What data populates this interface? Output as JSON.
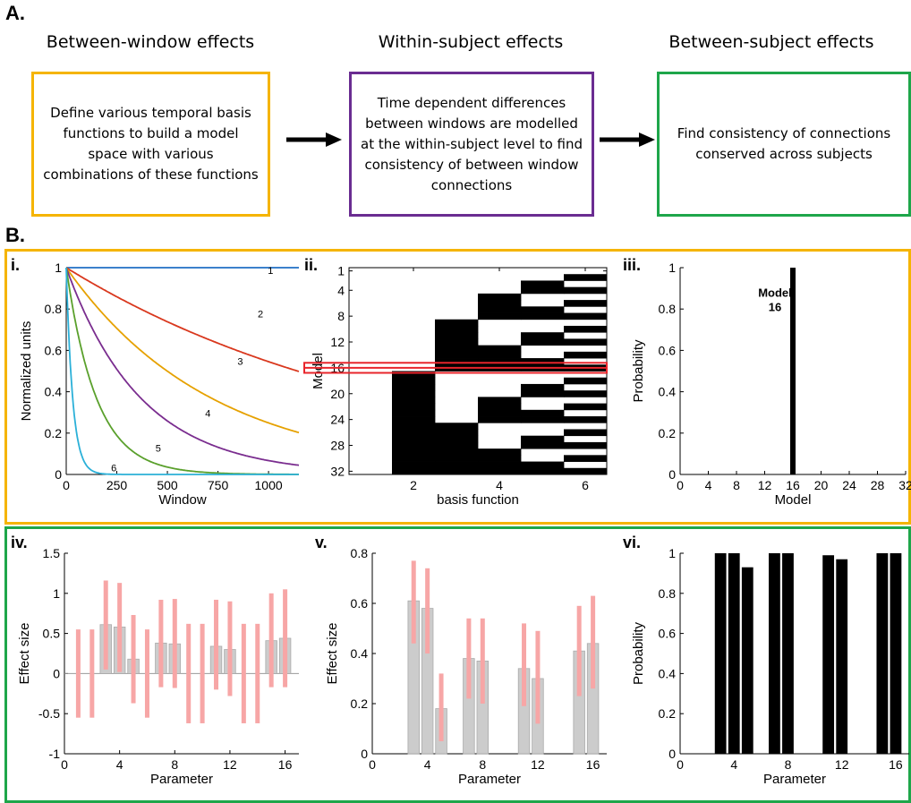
{
  "sectionA": {
    "label": "A.",
    "stages": [
      {
        "title": "Between-window effects",
        "text": "Define various temporal basis functions to build a model space with various combinations of these functions",
        "color": "#f5b400"
      },
      {
        "title": "Within-subject effects",
        "text": "Time dependent differences between windows are modelled at the within-subject level to find consistency of between window connections",
        "color": "#6a2c91"
      },
      {
        "title": "Between-subject effects",
        "text": "Find consistency of connections conserved across subjects",
        "color": "#1ea64a"
      }
    ]
  },
  "sectionB": {
    "label": "B.",
    "row1_color": "#f5b400",
    "row2_color": "#1ea64a"
  },
  "chart_data": [
    {
      "panel": "i.",
      "type": "line",
      "xlabel": "Window",
      "ylabel": "Normalized units",
      "xlim": [
        0,
        1150
      ],
      "ylim": [
        0,
        1
      ],
      "xticks": [
        0,
        250,
        500,
        750,
        1000
      ],
      "yticks": [
        0,
        0.2,
        0.4,
        0.6,
        0.8,
        1
      ],
      "series": [
        {
          "name": "1",
          "color": "#1f6fc4",
          "decay": 0,
          "label_at": [
            1010,
            0.97
          ]
        },
        {
          "name": "2",
          "color": "#d9381e",
          "decay": 1650,
          "label_at": [
            960,
            0.76
          ]
        },
        {
          "name": "3",
          "color": "#e6a100",
          "decay": 720,
          "label_at": [
            860,
            0.53
          ]
        },
        {
          "name": "4",
          "color": "#7a2d8f",
          "decay": 370,
          "label_at": [
            700,
            0.28
          ]
        },
        {
          "name": "5",
          "color": "#5aa02c",
          "decay": 150,
          "label_at": [
            455,
            0.11
          ]
        },
        {
          "name": "6",
          "color": "#2bb0d8",
          "decay": 32,
          "label_at": [
            235,
            0.015
          ]
        }
      ]
    },
    {
      "panel": "ii.",
      "type": "heatmap",
      "xlabel": "basis function",
      "ylabel": "Model",
      "xticks": [
        2,
        4,
        6
      ],
      "yticks": [
        1,
        4,
        8,
        12,
        16,
        20,
        24,
        28,
        32
      ],
      "models": 32,
      "basis_functions": 6,
      "highlight_model": 16,
      "highlight_color": "#e8252b"
    },
    {
      "panel": "iii.",
      "type": "bar",
      "xlabel": "Model",
      "ylabel": "Probability",
      "xlim": [
        0,
        32
      ],
      "ylim": [
        0,
        1
      ],
      "xticks": [
        0,
        4,
        8,
        12,
        16,
        20,
        24,
        28,
        32
      ],
      "yticks": [
        0,
        0.2,
        0.4,
        0.6,
        0.8,
        1
      ],
      "x": [
        16
      ],
      "values": [
        1
      ],
      "annotation": {
        "line1": "Model",
        "line2": "16"
      }
    },
    {
      "panel": "iv.",
      "type": "bar",
      "xlabel": "Parameter",
      "ylabel": "Effect size",
      "xlim": [
        0,
        17
      ],
      "ylim": [
        -1,
        1.5
      ],
      "xticks": [
        0,
        4,
        8,
        12,
        16
      ],
      "yticks": [
        -1,
        -0.5,
        0,
        0.5,
        1,
        1.5
      ],
      "x": [
        1,
        2,
        3,
        4,
        5,
        6,
        7,
        8,
        9,
        10,
        11,
        12,
        13,
        14,
        15,
        16
      ],
      "values": [
        0,
        0,
        0.61,
        0.58,
        0.18,
        0,
        0.38,
        0.37,
        0,
        0,
        0.34,
        0.3,
        0,
        0,
        0.41,
        0.44
      ],
      "ci_low": [
        -0.55,
        -0.55,
        0.05,
        0.02,
        -0.37,
        -0.55,
        -0.17,
        -0.18,
        -0.62,
        -0.62,
        -0.2,
        -0.28,
        -0.62,
        -0.62,
        -0.17,
        -0.17
      ],
      "ci_high": [
        0.55,
        0.55,
        1.16,
        1.13,
        0.73,
        0.55,
        0.92,
        0.93,
        0.62,
        0.62,
        0.92,
        0.9,
        0.62,
        0.62,
        1.0,
        1.05
      ],
      "bar_color": "#cccccc",
      "ci_color": "#f7a6a6"
    },
    {
      "panel": "v.",
      "type": "bar",
      "xlabel": "Parameter",
      "ylabel": "Effect size",
      "xlim": [
        0,
        17
      ],
      "ylim": [
        0,
        0.8
      ],
      "xticks": [
        0,
        4,
        8,
        12,
        16
      ],
      "yticks": [
        0,
        0.2,
        0.4,
        0.6,
        0.8
      ],
      "x": [
        3,
        4,
        5,
        7,
        8,
        11,
        12,
        15,
        16
      ],
      "values": [
        0.61,
        0.58,
        0.18,
        0.38,
        0.37,
        0.34,
        0.3,
        0.41,
        0.44
      ],
      "ci_low": [
        0.44,
        0.4,
        0.05,
        0.22,
        0.2,
        0.19,
        0.12,
        0.23,
        0.26
      ],
      "ci_high": [
        0.77,
        0.74,
        0.32,
        0.54,
        0.54,
        0.52,
        0.49,
        0.59,
        0.63
      ],
      "bar_color": "#cccccc",
      "ci_color": "#f7a6a6"
    },
    {
      "panel": "vi.",
      "type": "bar",
      "xlabel": "Parameter",
      "ylabel": "Probability",
      "xlim": [
        0,
        17
      ],
      "ylim": [
        0,
        1
      ],
      "xticks": [
        0,
        4,
        8,
        12,
        16
      ],
      "yticks": [
        0,
        0.2,
        0.4,
        0.6,
        0.8,
        1
      ],
      "x": [
        3,
        4,
        5,
        7,
        8,
        11,
        12,
        15,
        16
      ],
      "values": [
        1,
        1,
        0.93,
        1,
        1,
        0.99,
        0.97,
        1,
        1
      ]
    }
  ]
}
